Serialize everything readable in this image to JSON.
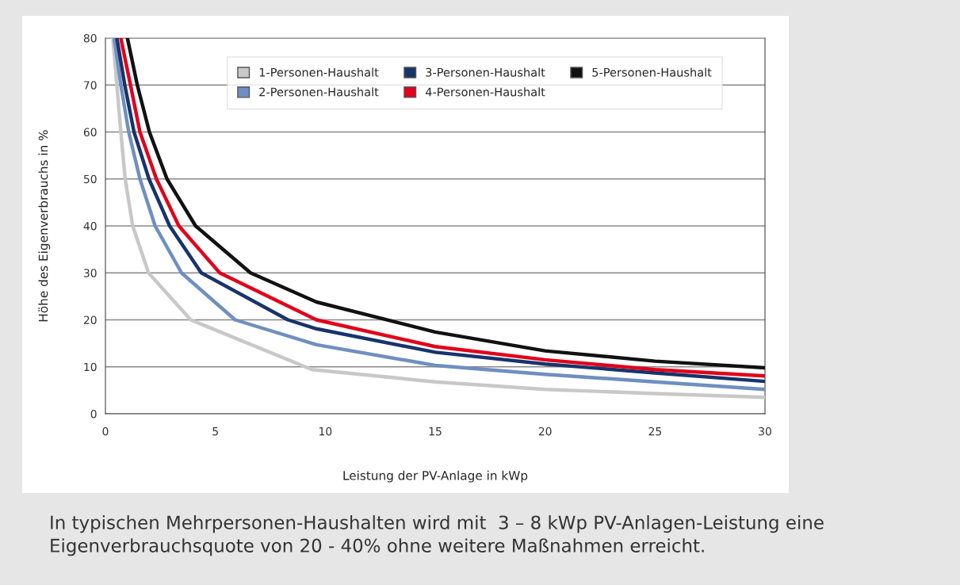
{
  "chart_data": {
    "type": "line",
    "ylabel": "Höhe des Eigenverbrauchs in %",
    "xlabel": "Leistung der PV-Anlage in kWp",
    "xlim": [
      0,
      30
    ],
    "xticks": [
      0,
      5,
      10,
      15,
      20,
      25,
      30
    ],
    "ylim": [
      0,
      80
    ],
    "yticks": [
      0,
      10,
      20,
      30,
      40,
      50,
      60,
      70,
      80
    ],
    "grid": "y",
    "legend": "top",
    "marker": "none",
    "line_style": "solid",
    "annotations": [
      "In typischen Mehrpersonen-Haushalten wird mit  3 – 8 kWp PV-Anlagen-Leistung eine Eigenverbrauchsquote von 20 - 40% ohne weitere Maßnahmen erreicht."
    ],
    "series": [
      {
        "name": "1-Personen-Haushalt",
        "color": "#c8c8c8",
        "x": [
          0.34,
          0.52,
          0.7,
          0.9,
          1.24,
          1.96,
          3.88,
          9.4,
          15,
          20,
          25,
          30
        ],
        "values": [
          80,
          70,
          60,
          50,
          40,
          30,
          20,
          9.4,
          6.8,
          5.2,
          4.3,
          3.5
        ]
      },
      {
        "name": "2-Personen-Haushalt",
        "color": "#6f8fc0",
        "x": [
          0.4,
          0.7,
          1.06,
          1.57,
          2.26,
          3.46,
          5.9,
          9.6,
          15,
          20,
          25,
          30
        ],
        "values": [
          80,
          70,
          60,
          50,
          40,
          30,
          20,
          14.7,
          10.3,
          8.4,
          6.8,
          5.2
        ]
      },
      {
        "name": "3-Personen-Haushalt",
        "color": "#17346b",
        "x": [
          0.52,
          0.88,
          1.3,
          1.98,
          2.92,
          4.36,
          8.3,
          9.6,
          15,
          20,
          25,
          30
        ],
        "values": [
          80,
          70,
          60,
          50,
          40,
          30,
          20,
          18.1,
          13.1,
          10.6,
          8.7,
          6.9
        ]
      },
      {
        "name": "4-Personen-Haushalt",
        "color": "#e2001a",
        "x": [
          0.7,
          1.14,
          1.57,
          2.32,
          3.34,
          5.2,
          9.6,
          15,
          20,
          25,
          30
        ],
        "values": [
          80,
          70,
          60,
          50,
          40,
          30,
          20,
          14.3,
          11.5,
          9.4,
          8.05
        ]
      },
      {
        "name": "5-Personen-Haushalt",
        "color": "#111111",
        "x": [
          1.0,
          1.45,
          2.0,
          2.8,
          4.1,
          6.6,
          9.6,
          15,
          20,
          25,
          30
        ],
        "values": [
          80,
          70,
          60,
          50,
          40,
          30,
          23.8,
          17.4,
          13.4,
          11.2,
          9.8
        ]
      }
    ]
  }
}
